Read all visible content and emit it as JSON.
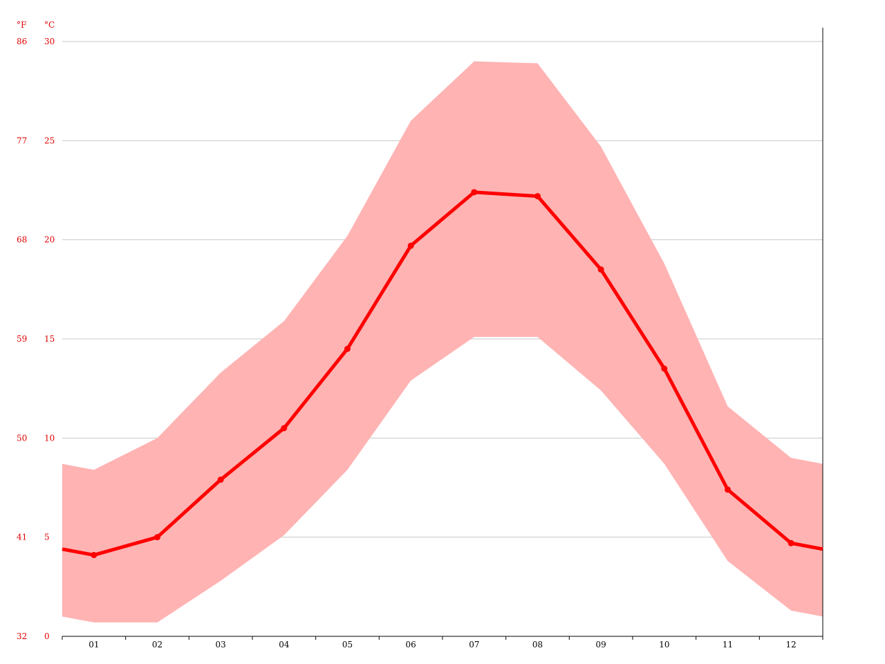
{
  "chart_data": {
    "type": "area",
    "title": "",
    "xlabel": "",
    "ylabel": "",
    "units": {
      "fahrenheit": "°F",
      "celsius": "°C"
    },
    "categories": [
      "01",
      "02",
      "03",
      "04",
      "05",
      "06",
      "07",
      "08",
      "09",
      "10",
      "11",
      "12"
    ],
    "celsius_ticks": [
      "0",
      "5",
      "10",
      "15",
      "20",
      "25",
      "30"
    ],
    "fahrenheit_ticks": [
      "32",
      "41",
      "50",
      "59",
      "68",
      "77",
      "86"
    ],
    "ylim": [
      0,
      30
    ],
    "grid": true,
    "series": [
      {
        "values": [
          4.1,
          5.0,
          7.9,
          10.5,
          14.5,
          19.7,
          22.4,
          22.2,
          18.5,
          13.5,
          7.4,
          4.7
        ],
        "edge_values": [
          4.4,
          4.4
        ]
      },
      {
        "values": [
          8.4,
          10.0,
          13.3,
          15.9,
          20.2,
          26.0,
          29.0,
          28.9,
          24.7,
          18.8,
          11.6,
          9.0
        ],
        "edge_values": [
          8.7,
          8.7
        ]
      },
      {
        "values": [
          0.7,
          0.7,
          2.8,
          5.1,
          8.4,
          12.9,
          15.1,
          15.1,
          12.4,
          8.7,
          3.8,
          1.3
        ],
        "edge_values": [
          1.0,
          1.0
        ]
      }
    ],
    "colors": {
      "line": "#ff0000",
      "band": "#ffb3b3",
      "tick_text": "#e00000",
      "grid": "#c8c8c8",
      "axis": "#000000"
    }
  }
}
